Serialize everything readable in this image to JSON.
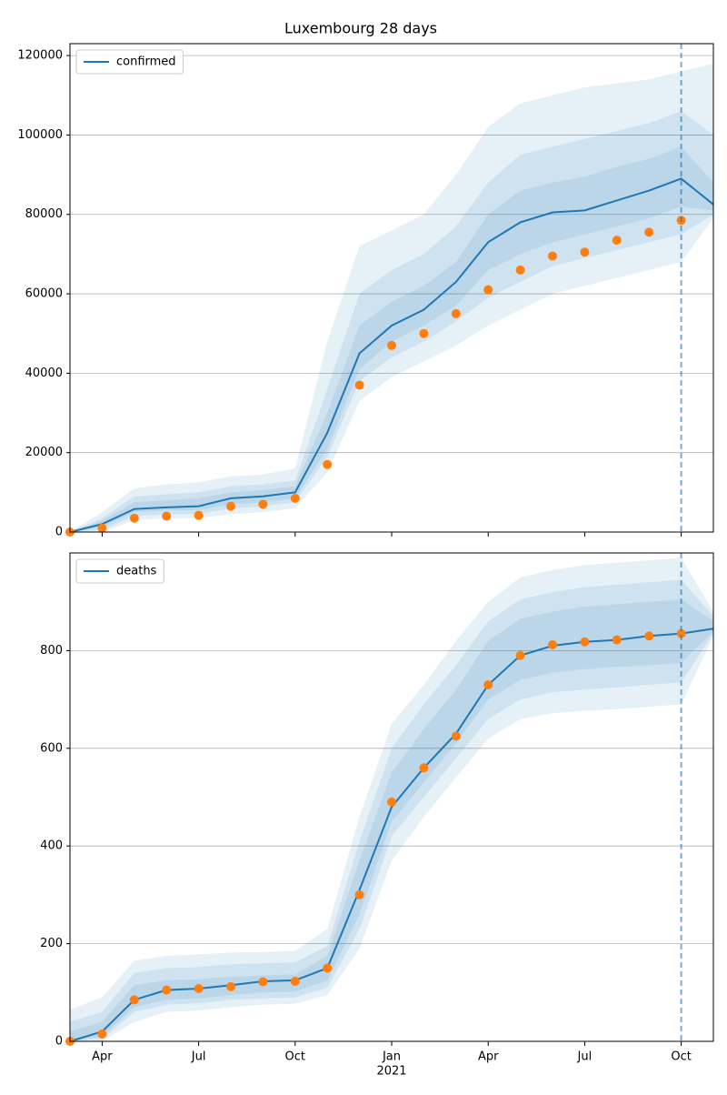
{
  "chart_data": [
    {
      "type": "line",
      "title": "Luxembourg 28 days",
      "x": [
        "2020-03",
        "2020-04",
        "2020-05",
        "2020-06",
        "2020-07",
        "2020-08",
        "2020-09",
        "2020-10",
        "2020-11",
        "2020-12",
        "2021-01",
        "2021-02",
        "2021-03",
        "2021-04",
        "2021-05",
        "2021-06",
        "2021-07",
        "2021-08",
        "2021-09",
        "2021-10",
        "2021-11"
      ],
      "xlim": [
        "2020-03",
        "2021-11"
      ],
      "xticks": [
        {
          "value": "2020-04",
          "label": "Apr"
        },
        {
          "value": "2020-07",
          "label": "Jul"
        },
        {
          "value": "2020-10",
          "label": "Oct"
        },
        {
          "value": "2021-01",
          "label": "Jan",
          "sublabel": "2021"
        },
        {
          "value": "2021-04",
          "label": "Apr"
        },
        {
          "value": "2021-07",
          "label": "Jul"
        },
        {
          "value": "2021-10",
          "label": "Oct"
        }
      ],
      "show_xtick_labels": false,
      "ylim": [
        0,
        123000
      ],
      "yticks": [
        0,
        20000,
        40000,
        60000,
        80000,
        100000,
        120000
      ],
      "grid": true,
      "legend": "upper left",
      "vline": "2021-10",
      "series": [
        {
          "name": "confirmed",
          "color": "#1f77b4",
          "values": [
            0,
            2000,
            5800,
            6200,
            6500,
            8500,
            9000,
            10000,
            25000,
            45000,
            52000,
            56000,
            63000,
            73000,
            78000,
            80500,
            81000,
            83500,
            86000,
            89000,
            82500
          ]
        }
      ],
      "observed": {
        "color": "#ff7f0e",
        "values": [
          0,
          1000,
          3500,
          4000,
          4200,
          6500,
          7000,
          8500,
          17000,
          37000,
          47000,
          50000,
          55000,
          61000,
          66000,
          69500,
          70500,
          73500,
          75500,
          78500,
          null
        ]
      },
      "band_color": "#1f77b4",
      "bands": [
        {
          "upper": [
            0,
            5000,
            11000,
            12000,
            12500,
            14000,
            14500,
            16000,
            48000,
            72000,
            76000,
            80000,
            90000,
            102000,
            108000,
            110000,
            112000,
            113000,
            114000,
            116000,
            118000
          ],
          "lower": [
            0,
            0,
            3000,
            3500,
            3500,
            4500,
            5000,
            6000,
            15000,
            33000,
            39000,
            43000,
            47000,
            52000,
            56000,
            60000,
            62000,
            64000,
            66000,
            68000,
            79000
          ]
        },
        {
          "upper": [
            0,
            3500,
            9000,
            9500,
            10000,
            11500,
            12000,
            13000,
            36000,
            60000,
            66000,
            70000,
            77000,
            88000,
            95000,
            97000,
            99000,
            101000,
            103000,
            106000,
            100000
          ],
          "lower": [
            0,
            500,
            4000,
            4500,
            4500,
            6000,
            6500,
            7500,
            19000,
            38000,
            44000,
            48000,
            53000,
            59000,
            63000,
            67000,
            69000,
            71000,
            73000,
            75000,
            80000
          ]
        },
        {
          "upper": [
            0,
            2800,
            7500,
            8000,
            8500,
            10000,
            10500,
            11500,
            30000,
            52000,
            58000,
            62000,
            68000,
            80000,
            86000,
            88000,
            89500,
            92000,
            94000,
            97000,
            88000
          ],
          "lower": [
            0,
            1200,
            5000,
            5500,
            5500,
            7000,
            7500,
            8500,
            21000,
            41000,
            48000,
            52000,
            57000,
            66000,
            70000,
            73000,
            75000,
            77000,
            79000,
            82000,
            81000
          ]
        }
      ]
    },
    {
      "type": "line",
      "x": [
        "2020-03",
        "2020-04",
        "2020-05",
        "2020-06",
        "2020-07",
        "2020-08",
        "2020-09",
        "2020-10",
        "2020-11",
        "2020-12",
        "2021-01",
        "2021-02",
        "2021-03",
        "2021-04",
        "2021-05",
        "2021-06",
        "2021-07",
        "2021-08",
        "2021-09",
        "2021-10",
        "2021-11"
      ],
      "xlim": [
        "2020-03",
        "2021-11"
      ],
      "xticks": [
        {
          "value": "2020-04",
          "label": "Apr"
        },
        {
          "value": "2020-07",
          "label": "Jul"
        },
        {
          "value": "2020-10",
          "label": "Oct"
        },
        {
          "value": "2021-01",
          "label": "Jan",
          "sublabel": "2021"
        },
        {
          "value": "2021-04",
          "label": "Apr"
        },
        {
          "value": "2021-07",
          "label": "Jul"
        },
        {
          "value": "2021-10",
          "label": "Oct"
        }
      ],
      "show_xtick_labels": true,
      "ylim": [
        0,
        1000
      ],
      "yticks": [
        0,
        200,
        400,
        600,
        800
      ],
      "grid": true,
      "legend": "upper left",
      "vline": "2021-10",
      "series": [
        {
          "name": "deaths",
          "color": "#1f77b4",
          "values": [
            0,
            20,
            85,
            105,
            108,
            115,
            123,
            125,
            150,
            310,
            480,
            560,
            630,
            730,
            790,
            810,
            818,
            822,
            830,
            835,
            845
          ]
        }
      ],
      "observed": {
        "color": "#ff7f0e",
        "values": [
          0,
          15,
          85,
          105,
          108,
          112,
          122,
          123,
          150,
          300,
          490,
          560,
          625,
          730,
          790,
          812,
          818,
          822,
          830,
          835,
          null
        ]
      },
      "band_color": "#1f77b4",
      "bands": [
        {
          "upper": [
            65,
            90,
            165,
            175,
            178,
            182,
            183,
            185,
            230,
            460,
            650,
            730,
            820,
            900,
            950,
            965,
            975,
            980,
            985,
            990,
            880
          ],
          "lower": [
            0,
            0,
            40,
            60,
            63,
            70,
            75,
            77,
            95,
            190,
            370,
            460,
            540,
            620,
            660,
            672,
            677,
            680,
            685,
            690,
            830
          ]
        },
        {
          "upper": [
            40,
            60,
            140,
            150,
            152,
            158,
            160,
            162,
            195,
            410,
            600,
            690,
            770,
            860,
            905,
            920,
            930,
            935,
            940,
            945,
            870
          ],
          "lower": [
            0,
            5,
            60,
            75,
            78,
            85,
            88,
            90,
            110,
            230,
            420,
            500,
            580,
            660,
            700,
            715,
            720,
            725,
            730,
            735,
            835
          ]
        },
        {
          "upper": [
            20,
            40,
            115,
            125,
            127,
            132,
            135,
            137,
            175,
            370,
            550,
            640,
            720,
            820,
            865,
            880,
            890,
            895,
            900,
            905,
            860
          ],
          "lower": [
            0,
            10,
            70,
            85,
            88,
            95,
            100,
            102,
            125,
            260,
            450,
            530,
            610,
            700,
            740,
            755,
            762,
            767,
            770,
            775,
            840
          ]
        }
      ]
    }
  ]
}
